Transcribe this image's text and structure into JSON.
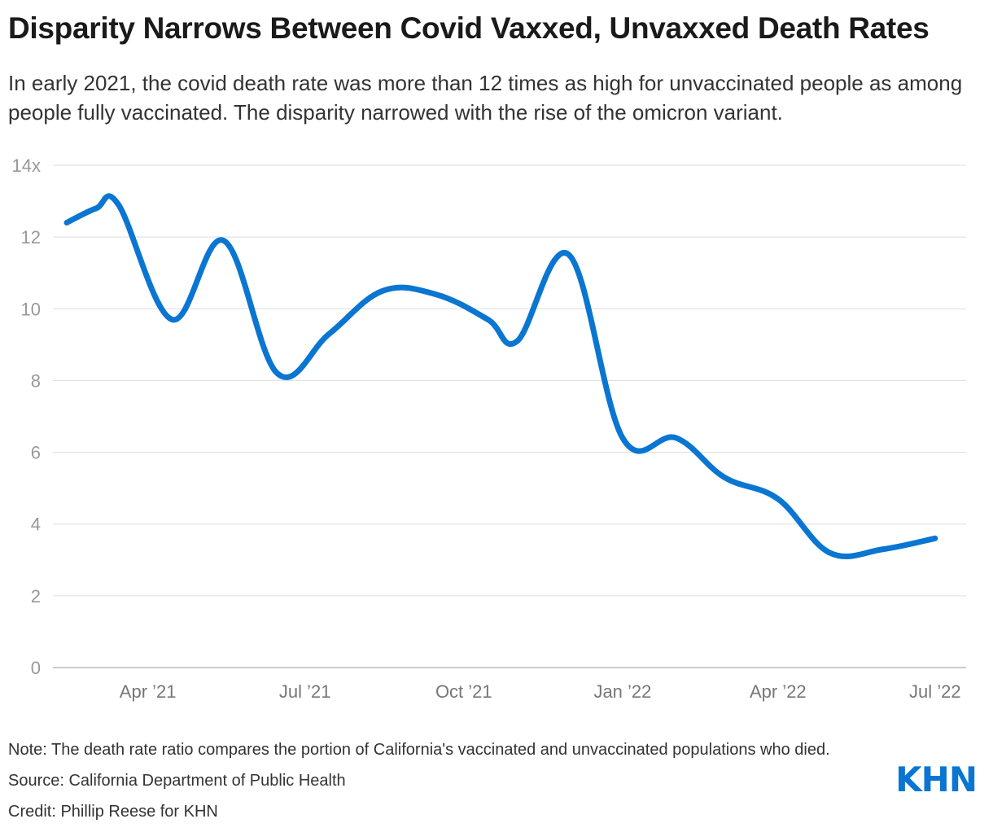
{
  "header": {
    "title": "Disparity Narrows Between Covid Vaxxed, Unvaxxed Death Rates",
    "subtitle": "In early 2021, the covid death rate was more than 12 times as high for unvaccinated people as among people fully vaccinated. The disparity narrowed with the rise of the omicron variant."
  },
  "footer": {
    "note": "Note: The death rate ratio compares the portion of California's vaccinated and unvaccinated populations who died.",
    "source": "Source: California Department of Public Health",
    "credit": "Credit: Phillip Reese for KHN",
    "logo_text": "KHN"
  },
  "colors": {
    "line": "#0a76d1",
    "grid": "#dddddd",
    "baseline": "#bbbbbb"
  },
  "chart_data": {
    "type": "line",
    "title": "",
    "xlabel": "",
    "ylabel": "",
    "ylim": [
      0,
      14
    ],
    "xlim": [
      "2021-02-05",
      "2022-07-19"
    ],
    "y_ticks": [
      0,
      2,
      4,
      6,
      8,
      10,
      12,
      14
    ],
    "y_tick_labels": [
      "0",
      "2",
      "4",
      "6",
      "8",
      "10",
      "12",
      "14x"
    ],
    "x_ticks": [
      {
        "date": "2021-04-01",
        "label": "Apr ’21"
      },
      {
        "date": "2021-07-01",
        "label": "Jul ’21"
      },
      {
        "date": "2021-10-01",
        "label": "Oct ’21"
      },
      {
        "date": "2022-01-01",
        "label": "Jan ’22"
      },
      {
        "date": "2022-04-01",
        "label": "Apr ’22"
      },
      {
        "date": "2022-07-01",
        "label": "Jul ’22"
      }
    ],
    "grid": true,
    "series": [
      {
        "name": "",
        "points": [
          {
            "date": "2021-02-13",
            "y": 12.4
          },
          {
            "date": "2021-03-02",
            "y": 12.8
          },
          {
            "date": "2021-03-15",
            "y": 12.9
          },
          {
            "date": "2021-04-15",
            "y": 9.7
          },
          {
            "date": "2021-05-15",
            "y": 11.9
          },
          {
            "date": "2021-06-15",
            "y": 8.2
          },
          {
            "date": "2021-07-15",
            "y": 9.3
          },
          {
            "date": "2021-08-15",
            "y": 10.5
          },
          {
            "date": "2021-09-15",
            "y": 10.4
          },
          {
            "date": "2021-10-15",
            "y": 9.7
          },
          {
            "date": "2021-11-01",
            "y": 9.1
          },
          {
            "date": "2021-12-01",
            "y": 11.5
          },
          {
            "date": "2022-01-01",
            "y": 6.4
          },
          {
            "date": "2022-02-01",
            "y": 6.4
          },
          {
            "date": "2022-03-01",
            "y": 5.3
          },
          {
            "date": "2022-04-01",
            "y": 4.7
          },
          {
            "date": "2022-05-01",
            "y": 3.2
          },
          {
            "date": "2022-06-01",
            "y": 3.3
          },
          {
            "date": "2022-07-01",
            "y": 3.6
          }
        ]
      }
    ]
  }
}
